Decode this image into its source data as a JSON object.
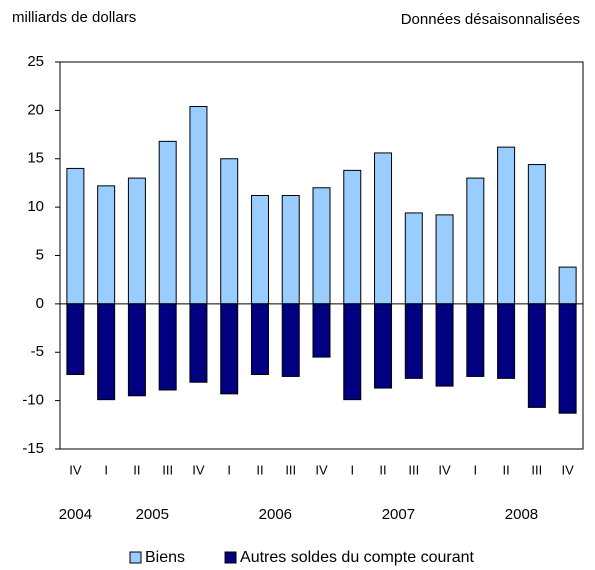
{
  "chart_data": {
    "type": "bar",
    "unit_label": "milliards de dollars",
    "subtitle": "Données désaisonnalisées",
    "categories": [
      "IV",
      "I",
      "II",
      "III",
      "IV",
      "I",
      "II",
      "III",
      "IV",
      "I",
      "II",
      "III",
      "IV",
      "I",
      "II",
      "III",
      "IV"
    ],
    "years": [
      "2004",
      "2005",
      null,
      null,
      null,
      "2006",
      null,
      null,
      null,
      "2007",
      null,
      null,
      null,
      "2008",
      null,
      null,
      null
    ],
    "series": [
      {
        "name": "Biens",
        "color": "#99ccff",
        "values": [
          14.0,
          12.2,
          13.0,
          16.8,
          20.4,
          15.0,
          11.2,
          11.2,
          12.0,
          13.8,
          15.6,
          9.4,
          9.2,
          13.0,
          16.2,
          14.4,
          3.8
        ]
      },
      {
        "name": "Autres soldes du compte courant",
        "color": "#000080",
        "values": [
          -7.3,
          -9.9,
          -9.5,
          -8.9,
          -8.1,
          -9.3,
          -7.3,
          -7.5,
          -5.5,
          -9.9,
          -8.7,
          -7.7,
          -8.5,
          -7.5,
          -7.7,
          -10.7,
          -11.3
        ]
      }
    ],
    "ylim": [
      -15,
      25
    ],
    "yticks": [
      -15,
      -10,
      -5,
      0,
      5,
      10,
      15,
      20,
      25
    ],
    "grid": false,
    "legend": "bottom"
  }
}
